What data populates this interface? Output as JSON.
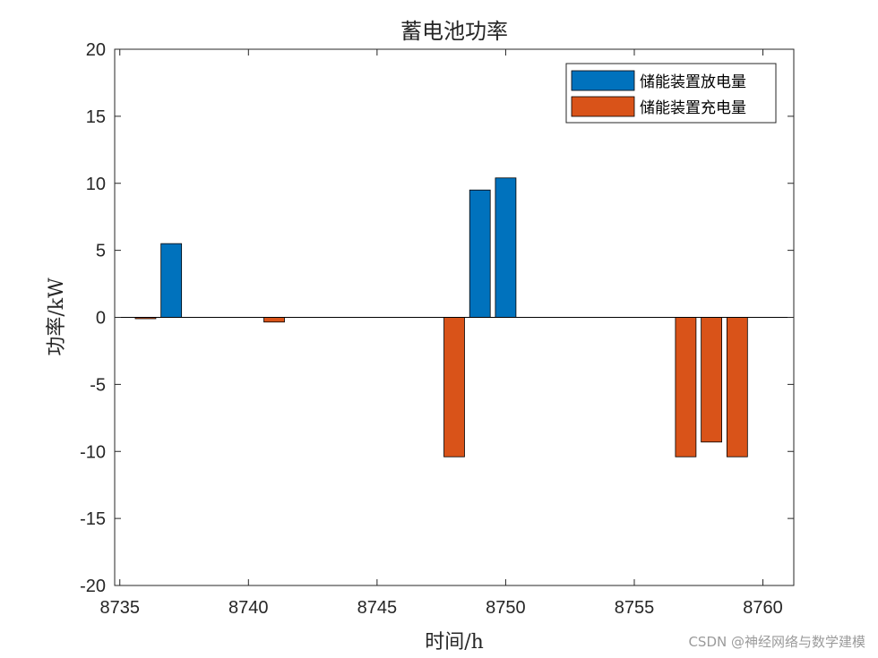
{
  "chart_data": {
    "type": "bar",
    "title": "蓄电池功率",
    "xlabel": "时间/h",
    "ylabel": "功率/kW",
    "xlim": [
      8734.8,
      8761.2
    ],
    "ylim": [
      -20,
      20
    ],
    "xticks": [
      8735,
      8740,
      8745,
      8750,
      8755,
      8760
    ],
    "yticks": [
      20,
      15,
      10,
      5,
      0,
      -5,
      -10,
      -15,
      -20
    ],
    "bar_width_units": 0.8,
    "legend_position": "top-right",
    "grid": false,
    "series": [
      {
        "name": "储能装置放电量",
        "color": "#0072BD",
        "x": [
          8737,
          8749,
          8750
        ],
        "values": [
          5.5,
          9.5,
          10.4
        ]
      },
      {
        "name": "储能装置充电量",
        "color": "#D95319",
        "x": [
          8736,
          8741,
          8748,
          8757,
          8758,
          8759
        ],
        "values": [
          -0.1,
          -0.35,
          -10.4,
          -10.4,
          -9.3,
          -10.4
        ]
      }
    ]
  },
  "watermark": "CSDN @神经网络与数学建模"
}
